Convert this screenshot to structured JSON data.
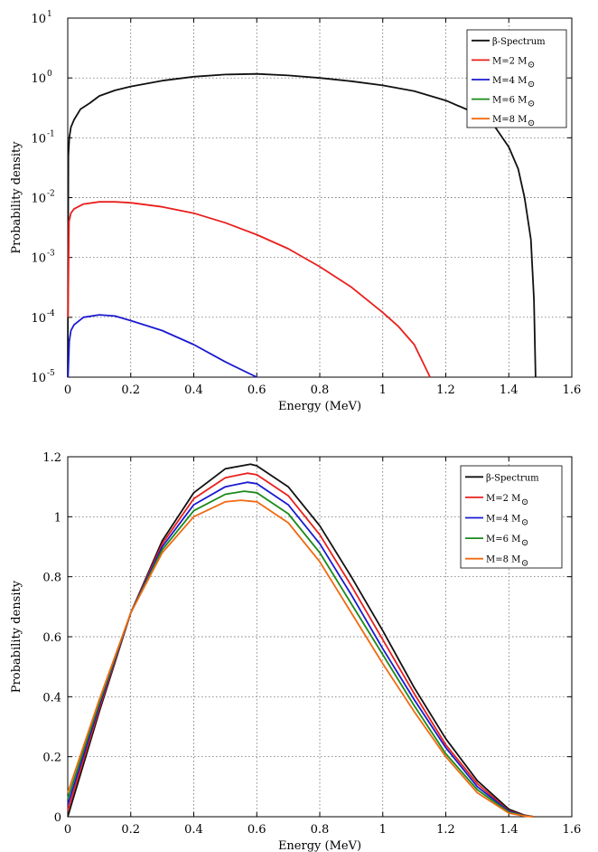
{
  "chart_data": [
    {
      "type": "line",
      "yscale": "log",
      "xlabel": "Energy (MeV)",
      "ylabel": "Probability density",
      "xlim": [
        0,
        1.6
      ],
      "ylim": [
        1e-05,
        10
      ],
      "xticks": [
        "0",
        "0.2",
        "0.4",
        "0.6",
        "0.8",
        "1",
        "1.2",
        "1.4",
        "1.6"
      ],
      "yticks": [
        {
          "base": "10",
          "exp": "-5"
        },
        {
          "base": "10",
          "exp": "-4"
        },
        {
          "base": "10",
          "exp": "-3"
        },
        {
          "base": "10",
          "exp": "-2"
        },
        {
          "base": "10",
          "exp": "-1"
        },
        {
          "base": "10",
          "exp": "0"
        },
        {
          "base": "10",
          "exp": "1"
        }
      ],
      "grid": true,
      "legend_position": "top-right",
      "series": [
        {
          "name": "β-Spectrum",
          "legend_suffix": "",
          "color": "#111111",
          "points": [
            [
              0.0,
              0.0
            ],
            [
              0.002,
              0.05
            ],
            [
              0.005,
              0.1
            ],
            [
              0.01,
              0.15
            ],
            [
              0.02,
              0.2
            ],
            [
              0.04,
              0.3
            ],
            [
              0.07,
              0.38
            ],
            [
              0.1,
              0.5
            ],
            [
              0.15,
              0.62
            ],
            [
              0.2,
              0.72
            ],
            [
              0.3,
              0.9
            ],
            [
              0.4,
              1.05
            ],
            [
              0.5,
              1.14
            ],
            [
              0.6,
              1.17
            ],
            [
              0.7,
              1.1
            ],
            [
              0.8,
              1.0
            ],
            [
              0.9,
              0.88
            ],
            [
              1.0,
              0.75
            ],
            [
              1.1,
              0.6
            ],
            [
              1.2,
              0.42
            ],
            [
              1.3,
              0.25
            ],
            [
              1.35,
              0.17
            ],
            [
              1.4,
              0.07
            ],
            [
              1.43,
              0.03
            ],
            [
              1.45,
              0.01
            ],
            [
              1.47,
              0.002
            ],
            [
              1.48,
              0.0002
            ],
            [
              1.485,
              1e-05
            ]
          ]
        },
        {
          "name": "M=2 M",
          "legend_suffix": "⊙",
          "color": "#e8201c",
          "points": [
            [
              0.001,
              0.0001
            ],
            [
              0.004,
              0.004
            ],
            [
              0.01,
              0.0055
            ],
            [
              0.02,
              0.0065
            ],
            [
              0.05,
              0.0078
            ],
            [
              0.1,
              0.0085
            ],
            [
              0.15,
              0.0085
            ],
            [
              0.2,
              0.0082
            ],
            [
              0.3,
              0.007
            ],
            [
              0.4,
              0.0055
            ],
            [
              0.5,
              0.0038
            ],
            [
              0.6,
              0.0024
            ],
            [
              0.7,
              0.0014
            ],
            [
              0.8,
              0.0007
            ],
            [
              0.9,
              0.00032
            ],
            [
              1.0,
              0.00012
            ],
            [
              1.05,
              7e-05
            ],
            [
              1.1,
              3.5e-05
            ],
            [
              1.15,
              1e-05
            ]
          ]
        },
        {
          "name": "M=4 M",
          "legend_suffix": "⊙",
          "color": "#1a1ad0",
          "points": [
            [
              0.001,
              1e-05
            ],
            [
              0.005,
              4e-05
            ],
            [
              0.01,
              6e-05
            ],
            [
              0.02,
              7.5e-05
            ],
            [
              0.05,
              0.0001
            ],
            [
              0.1,
              0.00011
            ],
            [
              0.15,
              0.000105
            ],
            [
              0.2,
              8.8e-05
            ],
            [
              0.3,
              6e-05
            ],
            [
              0.4,
              3.5e-05
            ],
            [
              0.5,
              1.8e-05
            ],
            [
              0.6,
              1e-05
            ]
          ]
        },
        {
          "name": "M=6 M",
          "legend_suffix": "⊙",
          "color": "#1a8a1a",
          "points": []
        },
        {
          "name": "M=8 M",
          "legend_suffix": "⊙",
          "color": "#f06a12",
          "points": []
        }
      ]
    },
    {
      "type": "line",
      "yscale": "linear",
      "xlabel": "Energy (MeV)",
      "ylabel": "Probability density",
      "xlim": [
        0,
        1.6
      ],
      "ylim": [
        0,
        1.2
      ],
      "xticks": [
        "0",
        "0.2",
        "0.4",
        "0.6",
        "0.8",
        "1",
        "1.2",
        "1.4",
        "1.6"
      ],
      "yticks": [
        "0",
        "0.2",
        "0.4",
        "0.6",
        "0.8",
        "1",
        "1.2"
      ],
      "grid": true,
      "legend_position": "top-right",
      "series": [
        {
          "name": "β-Spectrum",
          "legend_suffix": "",
          "color": "#111111",
          "points": [
            [
              0.0,
              0.0
            ],
            [
              0.1,
              0.35
            ],
            [
              0.2,
              0.68
            ],
            [
              0.3,
              0.92
            ],
            [
              0.4,
              1.08
            ],
            [
              0.5,
              1.16
            ],
            [
              0.58,
              1.175
            ],
            [
              0.6,
              1.17
            ],
            [
              0.7,
              1.1
            ],
            [
              0.8,
              0.97
            ],
            [
              0.9,
              0.8
            ],
            [
              1.0,
              0.62
            ],
            [
              1.1,
              0.43
            ],
            [
              1.2,
              0.26
            ],
            [
              1.3,
              0.12
            ],
            [
              1.4,
              0.025
            ],
            [
              1.45,
              0.005
            ],
            [
              1.48,
              0.0
            ]
          ]
        },
        {
          "name": "M=2 M",
          "legend_suffix": "⊙",
          "color": "#e8201c",
          "points": [
            [
              0.0,
              0.02
            ],
            [
              0.1,
              0.36
            ],
            [
              0.2,
              0.68
            ],
            [
              0.3,
              0.91
            ],
            [
              0.4,
              1.06
            ],
            [
              0.5,
              1.13
            ],
            [
              0.57,
              1.145
            ],
            [
              0.6,
              1.14
            ],
            [
              0.7,
              1.07
            ],
            [
              0.8,
              0.94
            ],
            [
              0.9,
              0.77
            ],
            [
              1.0,
              0.59
            ],
            [
              1.1,
              0.41
            ],
            [
              1.2,
              0.24
            ],
            [
              1.3,
              0.11
            ],
            [
              1.4,
              0.02
            ],
            [
              1.45,
              0.004
            ],
            [
              1.48,
              0.0
            ]
          ]
        },
        {
          "name": "M=4 M",
          "legend_suffix": "⊙",
          "color": "#1a1ad0",
          "points": [
            [
              0.0,
              0.04
            ],
            [
              0.1,
              0.37
            ],
            [
              0.2,
              0.68
            ],
            [
              0.3,
              0.9
            ],
            [
              0.4,
              1.04
            ],
            [
              0.5,
              1.1
            ],
            [
              0.57,
              1.115
            ],
            [
              0.6,
              1.11
            ],
            [
              0.7,
              1.04
            ],
            [
              0.8,
              0.91
            ],
            [
              0.9,
              0.74
            ],
            [
              1.0,
              0.56
            ],
            [
              1.1,
              0.39
            ],
            [
              1.2,
              0.23
            ],
            [
              1.3,
              0.1
            ],
            [
              1.4,
              0.018
            ],
            [
              1.45,
              0.003
            ],
            [
              1.48,
              0.0
            ]
          ]
        },
        {
          "name": "M=6 M",
          "legend_suffix": "⊙",
          "color": "#1a8a1a",
          "points": [
            [
              0.0,
              0.06
            ],
            [
              0.1,
              0.38
            ],
            [
              0.2,
              0.68
            ],
            [
              0.3,
              0.89
            ],
            [
              0.4,
              1.02
            ],
            [
              0.5,
              1.075
            ],
            [
              0.56,
              1.085
            ],
            [
              0.6,
              1.08
            ],
            [
              0.7,
              1.01
            ],
            [
              0.8,
              0.88
            ],
            [
              0.9,
              0.71
            ],
            [
              1.0,
              0.54
            ],
            [
              1.1,
              0.37
            ],
            [
              1.2,
              0.21
            ],
            [
              1.3,
              0.09
            ],
            [
              1.4,
              0.015
            ],
            [
              1.45,
              0.003
            ],
            [
              1.48,
              0.0
            ]
          ]
        },
        {
          "name": "M=8 M",
          "legend_suffix": "⊙",
          "color": "#f06a12",
          "points": [
            [
              0.0,
              0.08
            ],
            [
              0.1,
              0.39
            ],
            [
              0.2,
              0.68
            ],
            [
              0.3,
              0.88
            ],
            [
              0.4,
              1.0
            ],
            [
              0.5,
              1.05
            ],
            [
              0.55,
              1.055
            ],
            [
              0.6,
              1.05
            ],
            [
              0.7,
              0.98
            ],
            [
              0.8,
              0.85
            ],
            [
              0.9,
              0.68
            ],
            [
              1.0,
              0.51
            ],
            [
              1.1,
              0.35
            ],
            [
              1.2,
              0.2
            ],
            [
              1.3,
              0.08
            ],
            [
              1.4,
              0.012
            ],
            [
              1.45,
              0.002
            ],
            [
              1.48,
              0.0
            ]
          ]
        }
      ]
    }
  ]
}
